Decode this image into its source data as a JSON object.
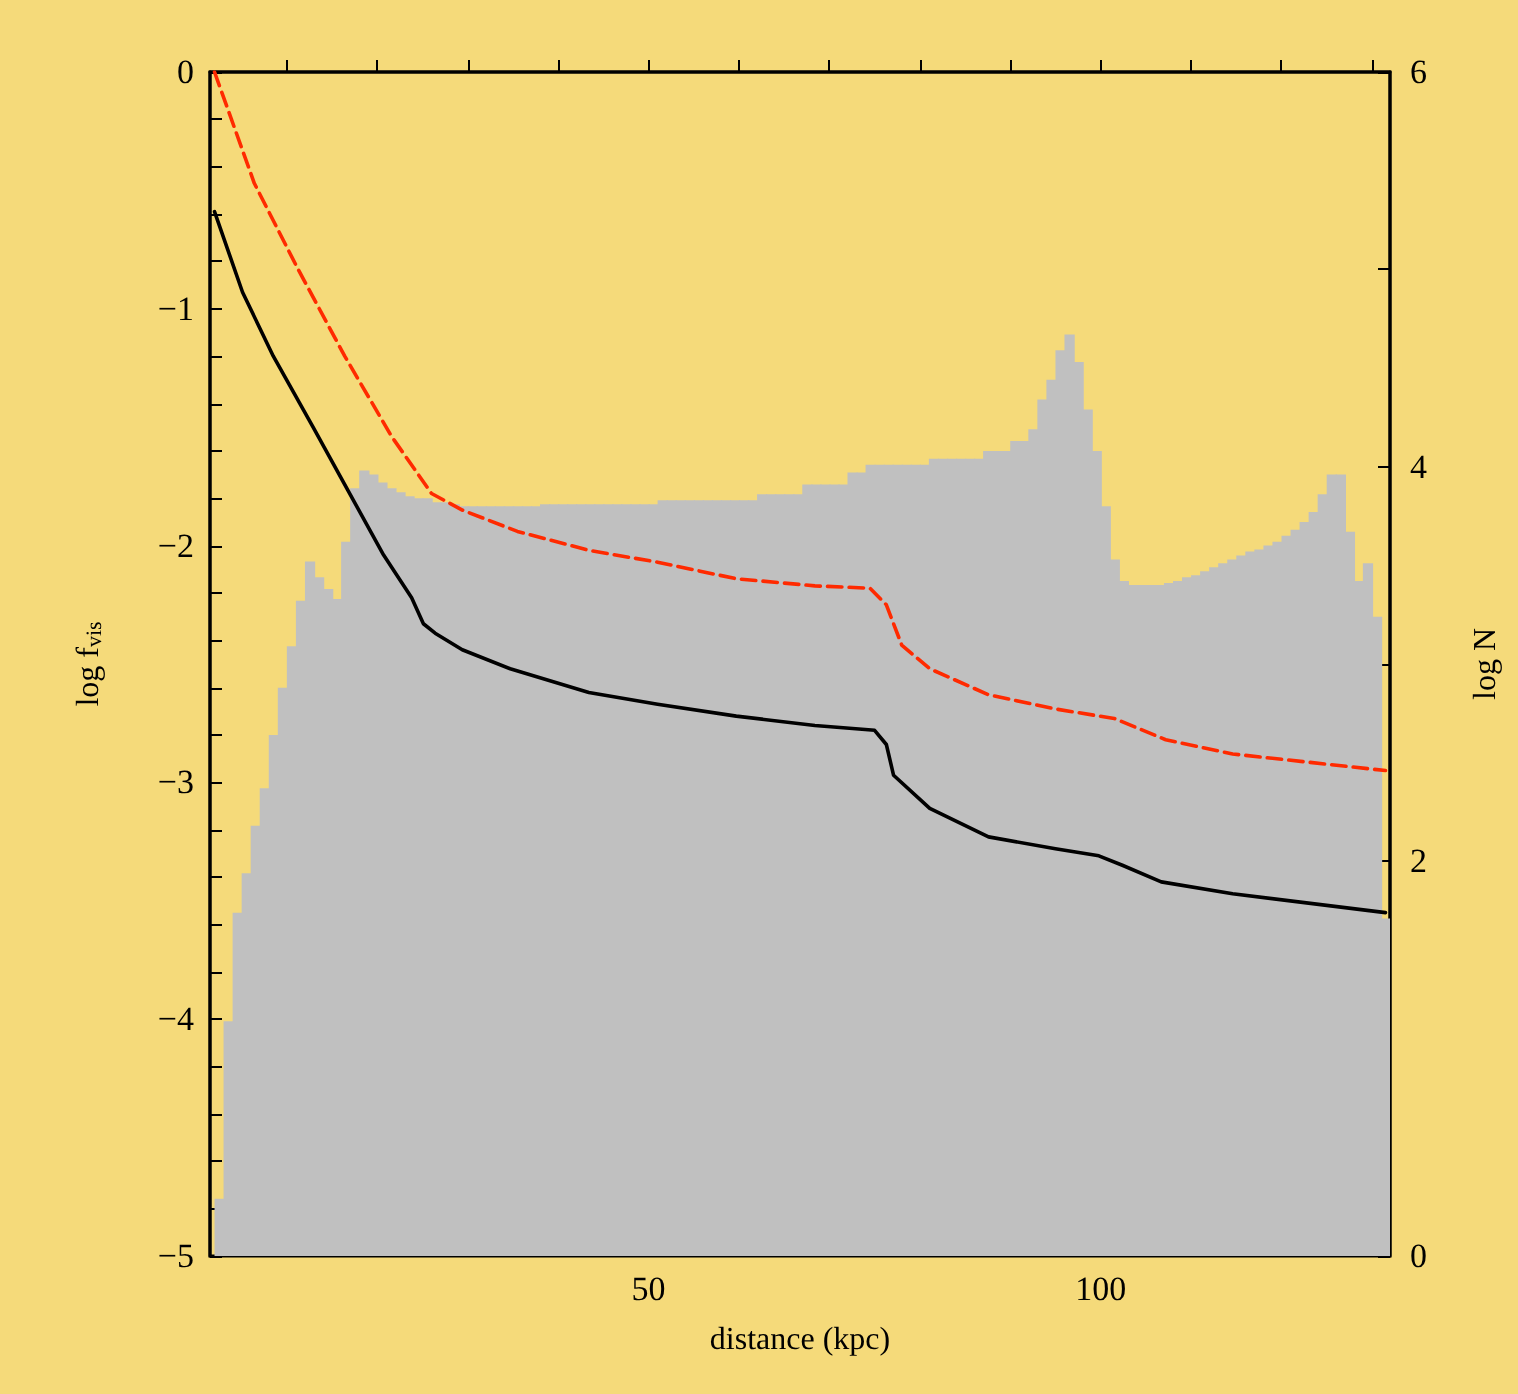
{
  "chart_data": {
    "type": "line",
    "xlabel": "distance (kpc)",
    "ylabel": "log f$_{vis}$",
    "y2label": "log N",
    "xlim": [
      1.5,
      132
    ],
    "xticks": [
      {
        "value": 10,
        "label": null
      },
      {
        "value": 20,
        "label": null
      },
      {
        "value": 30,
        "label": null
      },
      {
        "value": 40,
        "label": null
      },
      50,
      {
        "value": 60,
        "label": null
      },
      {
        "value": 70,
        "label": null
      },
      {
        "value": 80,
        "label": null
      },
      {
        "value": 90,
        "label": null
      },
      100,
      {
        "value": 110,
        "label": null
      },
      {
        "value": 120,
        "label": null
      },
      {
        "value": 130,
        "label": null
      }
    ],
    "ylim": [
      -5,
      0
    ],
    "yticks": [
      {
        "value": -5,
        "label": "−5"
      },
      {
        "value": -4.8,
        "label": null
      },
      {
        "value": -4.6,
        "label": null
      },
      {
        "value": -4.4,
        "label": null
      },
      {
        "value": -4.2,
        "label": null
      },
      {
        "value": -4,
        "label": "−4"
      },
      {
        "value": -3.8,
        "label": null
      },
      {
        "value": -3.6,
        "label": null
      },
      {
        "value": -3.4,
        "label": null
      },
      {
        "value": -3.2,
        "label": null
      },
      {
        "value": -3,
        "label": "−3"
      },
      {
        "value": -2.8,
        "label": null
      },
      {
        "value": -2.6,
        "label": null
      },
      {
        "value": -2.4,
        "label": null
      },
      {
        "value": -2.2,
        "label": null
      },
      {
        "value": -2,
        "label": "−2"
      },
      {
        "value": -1.8,
        "label": null
      },
      {
        "value": -1.6,
        "label": null
      },
      {
        "value": -1.4,
        "label": null
      },
      {
        "value": -1.2,
        "label": null
      },
      {
        "value": -1,
        "label": "−1"
      },
      {
        "value": -0.8,
        "label": null
      },
      {
        "value": -0.6,
        "label": null
      },
      {
        "value": -0.4,
        "label": null
      },
      {
        "value": -0.2,
        "label": null
      },
      0
    ],
    "y2lim": [
      0,
      6
    ],
    "y2ticks": [
      0,
      {
        "value": 1,
        "label": null
      },
      2,
      {
        "value": 3,
        "label": null
      },
      4,
      {
        "value": 5,
        "label": null
      },
      6
    ],
    "grid": false,
    "marker": "none",
    "series": [
      {
        "type": "histogram",
        "axis": "y2",
        "color": "#c0c0c0",
        "bins": [
          2,
          3,
          4,
          5,
          6,
          7,
          8,
          9,
          10,
          11,
          12,
          13,
          14,
          15,
          16,
          17,
          18,
          19,
          20,
          21,
          22,
          23,
          24,
          25,
          26,
          27,
          28,
          29,
          30,
          31,
          32,
          33,
          34,
          35,
          36,
          37,
          38,
          39,
          40,
          41,
          42,
          43,
          44,
          45,
          46,
          47,
          48,
          49,
          50,
          51,
          52,
          53,
          54,
          55,
          56,
          57,
          58,
          59,
          60,
          61,
          62,
          63,
          64,
          65,
          66,
          67,
          68,
          69,
          70,
          71,
          72,
          73,
          74,
          75,
          76,
          77,
          78,
          79,
          80,
          81,
          82,
          83,
          84,
          85,
          86,
          87,
          88,
          89,
          90,
          91,
          92,
          93,
          94,
          95,
          96,
          97,
          98,
          99,
          100,
          101,
          102,
          103,
          104,
          105,
          106,
          107,
          108,
          109,
          110,
          111,
          112,
          113,
          114,
          115,
          116,
          117,
          118,
          119,
          120,
          121,
          122,
          123,
          124,
          125,
          126,
          127,
          128,
          129,
          130,
          131,
          132
        ],
        "values": [
          0.29,
          1.19,
          1.74,
          1.94,
          2.18,
          2.37,
          2.64,
          2.88,
          3.09,
          3.32,
          3.52,
          3.44,
          3.38,
          3.33,
          3.62,
          3.89,
          3.98,
          3.96,
          3.92,
          3.89,
          3.87,
          3.85,
          3.84,
          3.84,
          3.82,
          3.82,
          3.81,
          3.8,
          3.8,
          3.8,
          3.8,
          3.8,
          3.8,
          3.8,
          3.8,
          3.8,
          3.81,
          3.81,
          3.81,
          3.81,
          3.81,
          3.81,
          3.81,
          3.81,
          3.81,
          3.81,
          3.81,
          3.81,
          3.81,
          3.83,
          3.83,
          3.83,
          3.83,
          3.83,
          3.83,
          3.83,
          3.83,
          3.83,
          3.83,
          3.83,
          3.86,
          3.86,
          3.86,
          3.86,
          3.86,
          3.91,
          3.91,
          3.91,
          3.91,
          3.91,
          3.97,
          3.97,
          4.01,
          4.01,
          4.01,
          4.01,
          4.01,
          4.01,
          4.01,
          4.04,
          4.04,
          4.04,
          4.04,
          4.04,
          4.04,
          4.08,
          4.08,
          4.08,
          4.13,
          4.13,
          4.19,
          4.34,
          4.44,
          4.59,
          4.67,
          4.53,
          4.29,
          4.08,
          3.8,
          3.53,
          3.42,
          3.4,
          3.4,
          3.4,
          3.4,
          3.41,
          3.42,
          3.44,
          3.45,
          3.47,
          3.49,
          3.51,
          3.53,
          3.55,
          3.57,
          3.58,
          3.6,
          3.62,
          3.65,
          3.68,
          3.72,
          3.77,
          3.86,
          3.96,
          3.96,
          3.67,
          3.42,
          3.51,
          3.24,
          1.71
        ]
      },
      {
        "color": "#ff2a00",
        "line_style": "dashed",
        "x": [
          2,
          6.4,
          11.2,
          16.4,
          21.6,
          26,
          29.4,
          35.5,
          43.4,
          51,
          59.7,
          68.4,
          74.5,
          76.3,
          78,
          81.1,
          87.6,
          95,
          101.5,
          107.2,
          114.6,
          131.5
        ],
        "values": [
          0,
          -0.47,
          -0.83,
          -1.2,
          -1.54,
          -1.78,
          -1.85,
          -1.94,
          -2.02,
          -2.07,
          -2.14,
          -2.17,
          -2.18,
          -2.25,
          -2.42,
          -2.52,
          -2.63,
          -2.69,
          -2.73,
          -2.82,
          -2.88,
          -2.95
        ]
      },
      {
        "color": "#000000",
        "line_style": "solid",
        "x": [
          2,
          5.1,
          8.5,
          12.9,
          16.8,
          20.7,
          23.8,
          25.1,
          26.4,
          29.4,
          34.7,
          43.4,
          51,
          59.7,
          68.4,
          75,
          76.3,
          77.1,
          81.1,
          87.6,
          95,
          99.8,
          102.4,
          106.7,
          114.6,
          131.5
        ],
        "values": [
          -0.59,
          -0.93,
          -1.2,
          -1.5,
          -1.77,
          -2.04,
          -2.22,
          -2.33,
          -2.37,
          -2.44,
          -2.52,
          -2.62,
          -2.67,
          -2.72,
          -2.76,
          -2.78,
          -2.84,
          -2.97,
          -3.11,
          -3.23,
          -3.28,
          -3.31,
          -3.35,
          -3.42,
          -3.47,
          -3.55
        ]
      }
    ]
  }
}
